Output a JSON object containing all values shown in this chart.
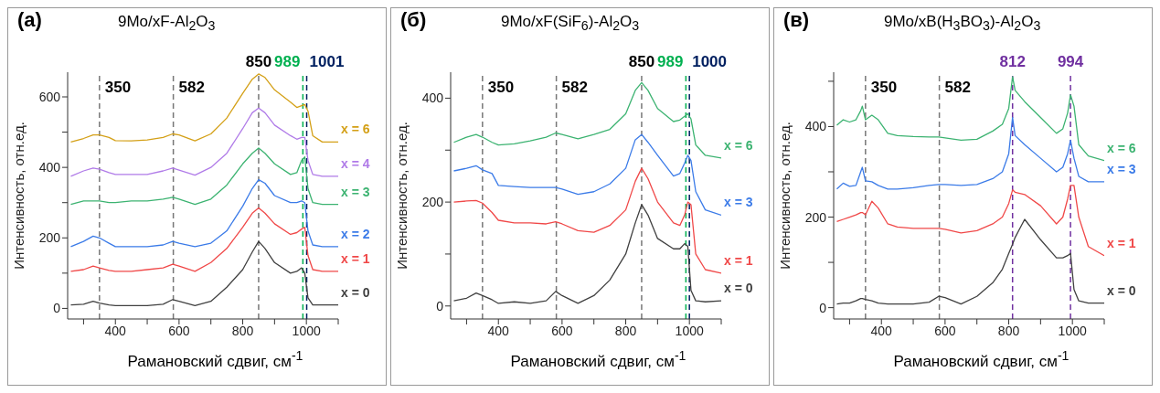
{
  "chart_data": [
    {
      "type": "line",
      "title": "9Mo/xF-Al$_{2}$O$_{3}$",
      "annotations": [
        "(а)"
      ],
      "xlabel": "Рамановский сдвиг, см$^{-1}$",
      "ylabel": "Интенсивность, отн.ед.",
      "marker": "none",
      "xlim": [
        250,
        1100
      ],
      "xticks": [
        {
          "value": 300,
          "label": null
        },
        400,
        {
          "value": 500,
          "label": null
        },
        600,
        {
          "value": 700,
          "label": null
        },
        800,
        {
          "value": 900,
          "label": null
        },
        1000,
        {
          "value": 1100,
          "label": null
        }
      ],
      "ylim": [
        -30,
        670
      ],
      "yticks": [
        0,
        {
          "value": 100,
          "label": null
        },
        200,
        {
          "value": 300,
          "label": null
        },
        400,
        {
          "value": 500,
          "label": null
        },
        600
      ],
      "x": [
        260,
        300,
        330,
        350,
        380,
        400,
        450,
        500,
        550,
        580,
        600,
        650,
        700,
        750,
        800,
        830,
        850,
        870,
        900,
        950,
        970,
        985,
        995,
        1005,
        1020,
        1050,
        1100
      ],
      "series": [
        {
          "name": "x = 0",
          "color": "#404040",
          "values": [
            10,
            12,
            20,
            15,
            10,
            8,
            8,
            8,
            12,
            25,
            20,
            8,
            20,
            60,
            110,
            160,
            190,
            170,
            130,
            100,
            105,
            115,
            100,
            30,
            10,
            10,
            10
          ]
        },
        {
          "name": "x = 1",
          "color": "#f04848",
          "values": [
            105,
            110,
            120,
            115,
            108,
            105,
            105,
            110,
            115,
            125,
            120,
            105,
            130,
            170,
            230,
            270,
            285,
            270,
            240,
            210,
            215,
            225,
            230,
            150,
            110,
            105,
            105
          ]
        },
        {
          "name": "x = 2",
          "color": "#3b7be8",
          "values": [
            175,
            190,
            205,
            200,
            185,
            175,
            175,
            175,
            180,
            190,
            185,
            175,
            185,
            220,
            290,
            340,
            365,
            355,
            320,
            300,
            300,
            305,
            300,
            220,
            180,
            175,
            175
          ]
        },
        {
          "name": "x = 3",
          "color": "#3cb371",
          "values": [
            295,
            305,
            305,
            305,
            300,
            300,
            305,
            305,
            310,
            315,
            310,
            295,
            310,
            350,
            410,
            440,
            455,
            440,
            410,
            380,
            385,
            420,
            430,
            340,
            300,
            295,
            295
          ]
        },
        {
          "name": "x = 4",
          "color": "#b07be8",
          "values": [
            375,
            390,
            398,
            395,
            385,
            380,
            380,
            380,
            390,
            398,
            392,
            378,
            400,
            440,
            510,
            555,
            568,
            555,
            520,
            490,
            480,
            485,
            485,
            420,
            380,
            375,
            375
          ]
        },
        {
          "name": "x = 6",
          "color": "#d4a017",
          "values": [
            472,
            482,
            492,
            492,
            485,
            476,
            475,
            478,
            485,
            495,
            492,
            475,
            495,
            540,
            610,
            650,
            665,
            655,
            620,
            585,
            570,
            575,
            578,
            560,
            490,
            472,
            472
          ]
        }
      ],
      "ref_lines": [
        {
          "axis": "x",
          "value": 350,
          "label": "350",
          "line_style": "dashed"
        },
        {
          "axis": "x",
          "value": 582,
          "label": "582",
          "line_style": "dashed"
        },
        {
          "axis": "x",
          "value": 850,
          "label": "850",
          "line_style": "dashed"
        },
        {
          "axis": "x",
          "value": 989,
          "label": "989",
          "line_style": "dashed",
          "color": "#00b050"
        },
        {
          "axis": "x",
          "value": 1001,
          "label": "1001",
          "line_style": "dashed",
          "color": "#002060"
        }
      ]
    },
    {
      "type": "line",
      "title": "9Mo/xF(SiF$_{6}$)-Al$_{2}$O$_{3}$",
      "annotations": [
        "(б)"
      ],
      "xlabel": "Рамановский сдвиг, см$^{-1}$",
      "ylabel": "Интенсивность, отн.ед.",
      "marker": "none",
      "xlim": [
        250,
        1100
      ],
      "xticks": [
        {
          "value": 300,
          "label": null
        },
        400,
        {
          "value": 500,
          "label": null
        },
        600,
        {
          "value": 700,
          "label": null
        },
        800,
        {
          "value": 900,
          "label": null
        },
        1000,
        {
          "value": 1100,
          "label": null
        }
      ],
      "ylim": [
        -25,
        450
      ],
      "yticks": [
        0,
        {
          "value": 100,
          "label": null
        },
        200,
        {
          "value": 300,
          "label": null
        },
        400
      ],
      "x": [
        260,
        300,
        330,
        350,
        380,
        400,
        450,
        500,
        550,
        580,
        600,
        650,
        700,
        750,
        800,
        830,
        850,
        870,
        900,
        950,
        970,
        985,
        995,
        1005,
        1020,
        1050,
        1100
      ],
      "series": [
        {
          "name": "x = 0",
          "color": "#404040",
          "values": [
            10,
            15,
            25,
            20,
            12,
            5,
            8,
            5,
            10,
            28,
            20,
            5,
            20,
            50,
            100,
            160,
            195,
            175,
            130,
            110,
            110,
            120,
            115,
            30,
            10,
            8,
            10
          ]
        },
        {
          "name": "x = 1",
          "color": "#f04848",
          "values": [
            200,
            202,
            203,
            198,
            180,
            165,
            160,
            160,
            158,
            162,
            158,
            145,
            142,
            155,
            185,
            240,
            265,
            245,
            200,
            160,
            155,
            175,
            200,
            195,
            100,
            70,
            63
          ]
        },
        {
          "name": "x = 3",
          "color": "#3b7be8",
          "values": [
            260,
            265,
            270,
            262,
            255,
            232,
            230,
            228,
            228,
            228,
            225,
            215,
            220,
            235,
            265,
            320,
            330,
            315,
            290,
            250,
            255,
            275,
            290,
            280,
            220,
            185,
            175
          ]
        },
        {
          "name": "x = 6",
          "color": "#3cb371",
          "values": [
            315,
            325,
            330,
            325,
            315,
            310,
            312,
            318,
            325,
            333,
            330,
            322,
            330,
            340,
            370,
            415,
            430,
            415,
            380,
            355,
            358,
            365,
            370,
            360,
            310,
            290,
            285
          ]
        }
      ],
      "ref_lines": [
        {
          "axis": "x",
          "value": 350,
          "label": "350",
          "line_style": "dashed"
        },
        {
          "axis": "x",
          "value": 582,
          "label": "582",
          "line_style": "dashed"
        },
        {
          "axis": "x",
          "value": 850,
          "label": "850",
          "line_style": "dashed"
        },
        {
          "axis": "x",
          "value": 989,
          "label": "989",
          "line_style": "dashed",
          "color": "#00b050"
        },
        {
          "axis": "x",
          "value": 1000,
          "label": "1000",
          "line_style": "dashed",
          "color": "#002060"
        }
      ]
    },
    {
      "type": "line",
      "title": "9Mo/xB(H$_{3}$BO$_{3}$)-Al$_{2}$O$_{3}$",
      "annotations": [
        "(в)"
      ],
      "xlabel": "Рамановский сдвиг, см$^{-1}$",
      "ylabel": "Интенсивность, отн.ед.",
      "marker": "none",
      "xlim": [
        250,
        1100
      ],
      "xticks": [
        {
          "value": 300,
          "label": null
        },
        400,
        {
          "value": 500,
          "label": null
        },
        600,
        {
          "value": 700,
          "label": null
        },
        800,
        {
          "value": 900,
          "label": null
        },
        1000,
        {
          "value": 1100,
          "label": null
        }
      ],
      "ylim": [
        -25,
        520
      ],
      "yticks": [
        0,
        {
          "value": 100,
          "label": null
        },
        200,
        {
          "value": 300,
          "label": null
        },
        400,
        {
          "value": 500,
          "label": null
        }
      ],
      "x": [
        260,
        280,
        300,
        320,
        335,
        340,
        350,
        370,
        390,
        420,
        450,
        500,
        550,
        580,
        600,
        650,
        700,
        750,
        780,
        800,
        812,
        820,
        850,
        900,
        950,
        970,
        985,
        994,
        1005,
        1020,
        1050,
        1100
      ],
      "series": [
        {
          "name": "x = 0",
          "color": "#404040",
          "values": [
            8,
            10,
            10,
            15,
            20,
            20,
            18,
            15,
            10,
            8,
            8,
            8,
            12,
            25,
            22,
            8,
            25,
            55,
            85,
            120,
            140,
            155,
            195,
            150,
            110,
            110,
            115,
            120,
            40,
            15,
            10,
            10
          ]
        },
        {
          "name": "x = 1",
          "color": "#f04848",
          "values": [
            190,
            195,
            200,
            205,
            210,
            210,
            205,
            235,
            220,
            185,
            178,
            175,
            175,
            175,
            173,
            165,
            170,
            185,
            200,
            230,
            260,
            255,
            250,
            225,
            185,
            200,
            240,
            270,
            270,
            200,
            135,
            115
          ]
        },
        {
          "name": "x = 3",
          "color": "#3b7be8",
          "values": [
            262,
            275,
            268,
            270,
            300,
            310,
            280,
            278,
            270,
            262,
            262,
            265,
            270,
            272,
            272,
            270,
            272,
            285,
            300,
            340,
            420,
            380,
            360,
            330,
            300,
            310,
            340,
            370,
            330,
            290,
            278,
            278
          ]
        },
        {
          "name": "x = 6",
          "color": "#3cb371",
          "values": [
            403,
            415,
            410,
            415,
            435,
            445,
            415,
            425,
            415,
            385,
            380,
            378,
            377,
            377,
            375,
            370,
            372,
            390,
            405,
            440,
            510,
            480,
            455,
            420,
            385,
            395,
            430,
            470,
            445,
            360,
            335,
            325
          ]
        }
      ],
      "ref_lines": [
        {
          "axis": "x",
          "value": 350,
          "label": "350",
          "line_style": "dashed"
        },
        {
          "axis": "x",
          "value": 582,
          "label": "582",
          "line_style": "dashed"
        },
        {
          "axis": "x",
          "value": 812,
          "label": "812",
          "line_style": "dashed",
          "color": "#7030a0"
        },
        {
          "axis": "x",
          "value": 994,
          "label": "994",
          "line_style": "dashed",
          "color": "#7030a0"
        }
      ]
    }
  ]
}
